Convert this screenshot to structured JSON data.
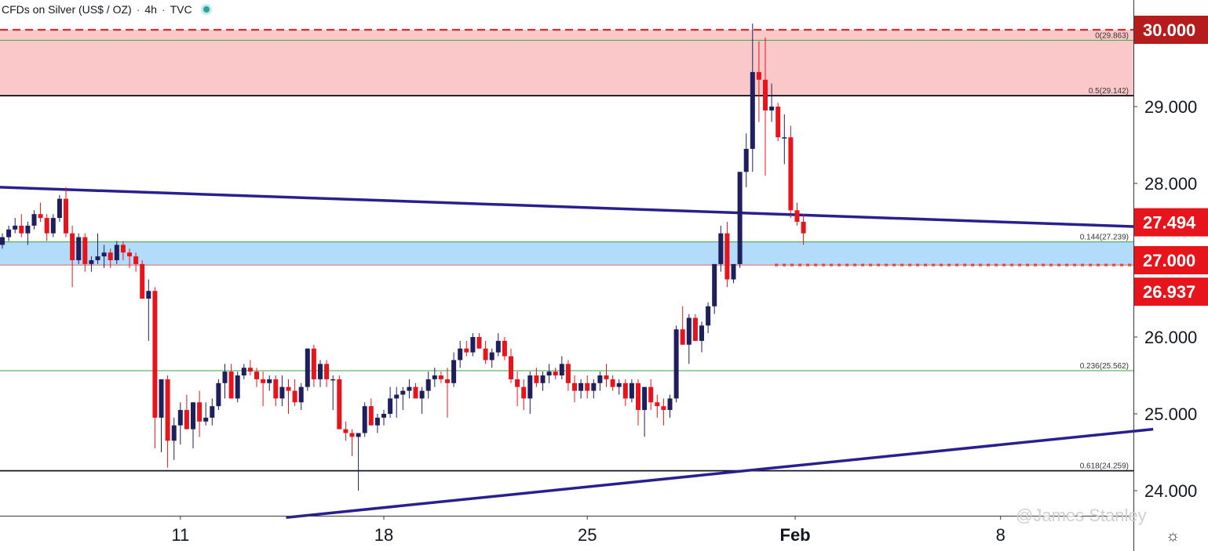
{
  "header": {
    "symbol": "CFDs on Silver (US$ / OZ)",
    "separator": "·",
    "interval": "4h",
    "source": "TVC"
  },
  "watermark": "@James Stanley",
  "colors": {
    "bull": "#1f1f5e",
    "bear": "#e8141c",
    "resistance_zone": "#fac8c8",
    "support_zone": "#b3dcfb",
    "trendline": "#2a1f8f",
    "fib_green": "#4caf50",
    "price_tag_red": "#e8141c",
    "price_tag_dark_red": "#b71c1c"
  },
  "chart_data": {
    "type": "candlestick",
    "title": "CFDs on Silver (US$ / OZ)",
    "interval": "4h",
    "x_ticks": [
      "11",
      "18",
      "25",
      "Feb",
      "8"
    ],
    "y_ticks": [
      "30.000",
      "29.000",
      "28.000",
      "27.000",
      "26.000",
      "25.000",
      "24.000"
    ],
    "y_range": [
      23.7,
      30.3
    ],
    "price_tags": [
      {
        "label": "30.000",
        "value": 30.0,
        "style": "dark"
      },
      {
        "label": "27.494",
        "value": 27.494,
        "style": "red"
      },
      {
        "label": "27.000",
        "value": 27.0,
        "style": "red"
      },
      {
        "label": "26.937",
        "value": 26.937,
        "style": "red"
      }
    ],
    "zones": [
      {
        "name": "resistance",
        "from": 29.142,
        "to": 30.0
      },
      {
        "name": "support",
        "from": 26.937,
        "to": 27.239
      }
    ],
    "fib_levels": [
      {
        "label": "0(29.863)",
        "value": 29.863,
        "color": "green"
      },
      {
        "label": "0.5(29.142)",
        "value": 29.142,
        "color": "black"
      },
      {
        "label": "0.144(27.239)",
        "value": 27.239,
        "color": "green"
      },
      {
        "label": "0.236(25.562)",
        "value": 25.562,
        "color": "green"
      },
      {
        "label": "0.618(24.259)",
        "value": 24.259,
        "color": "black"
      }
    ],
    "hlines": [
      {
        "value": 30.0,
        "style": "dashed-red"
      },
      {
        "value": 26.937,
        "style": "dotted-red"
      }
    ],
    "trendlines": [
      {
        "from": {
          "bar": 0,
          "price": 27.95
        },
        "to": {
          "bar": 181,
          "price": 27.43
        }
      },
      {
        "from": {
          "bar": 45,
          "price": 23.65
        },
        "to": {
          "bar": 181,
          "price": 24.8
        }
      }
    ],
    "candles": [
      [
        27.2,
        27.35,
        27.15,
        27.3
      ],
      [
        27.3,
        27.45,
        27.25,
        27.4
      ],
      [
        27.4,
        27.55,
        27.35,
        27.45
      ],
      [
        27.45,
        27.6,
        27.3,
        27.35
      ],
      [
        27.35,
        27.5,
        27.2,
        27.45
      ],
      [
        27.45,
        27.65,
        27.4,
        27.6
      ],
      [
        27.6,
        27.75,
        27.5,
        27.55
      ],
      [
        27.55,
        27.6,
        27.25,
        27.35
      ],
      [
        27.35,
        27.6,
        27.3,
        27.55
      ],
      [
        27.55,
        27.85,
        27.5,
        27.8
      ],
      [
        27.8,
        27.95,
        27.3,
        27.35
      ],
      [
        27.35,
        27.45,
        26.65,
        27.0
      ],
      [
        27.0,
        27.35,
        26.95,
        27.3
      ],
      [
        27.3,
        27.35,
        26.85,
        26.95
      ],
      [
        26.95,
        27.05,
        26.85,
        27.0
      ],
      [
        27.0,
        27.35,
        26.95,
        27.05
      ],
      [
        27.05,
        27.2,
        26.9,
        27.1
      ],
      [
        27.1,
        27.15,
        26.9,
        27.0
      ],
      [
        27.0,
        27.25,
        26.95,
        27.2
      ],
      [
        27.2,
        27.25,
        27.0,
        27.1
      ],
      [
        27.1,
        27.15,
        26.9,
        27.05
      ],
      [
        27.05,
        27.1,
        26.85,
        26.95
      ],
      [
        26.95,
        27.0,
        26.55,
        26.5
      ],
      [
        26.5,
        26.75,
        25.95,
        26.6
      ],
      [
        26.6,
        26.65,
        24.55,
        24.95
      ],
      [
        24.95,
        25.45,
        24.5,
        25.45
      ],
      [
        25.45,
        25.5,
        24.3,
        24.65
      ],
      [
        24.65,
        24.95,
        24.4,
        24.85
      ],
      [
        24.85,
        25.15,
        24.6,
        25.05
      ],
      [
        25.05,
        25.25,
        24.8,
        24.8
      ],
      [
        24.8,
        25.15,
        24.55,
        25.15
      ],
      [
        25.15,
        25.3,
        24.7,
        24.9
      ],
      [
        24.9,
        25.15,
        24.85,
        24.95
      ],
      [
        24.95,
        25.2,
        24.85,
        25.1
      ],
      [
        25.1,
        25.45,
        25.05,
        25.4
      ],
      [
        25.4,
        25.65,
        25.2,
        25.55
      ],
      [
        25.55,
        25.65,
        25.25,
        25.2
      ],
      [
        25.2,
        25.55,
        25.15,
        25.5
      ],
      [
        25.5,
        25.65,
        25.45,
        25.6
      ],
      [
        25.6,
        25.7,
        25.5,
        25.55
      ],
      [
        25.55,
        25.6,
        25.35,
        25.45
      ],
      [
        25.45,
        25.55,
        25.1,
        25.4
      ],
      [
        25.4,
        25.5,
        25.3,
        25.45
      ],
      [
        25.45,
        25.5,
        25.1,
        25.2
      ],
      [
        25.2,
        25.5,
        25.1,
        25.35
      ],
      [
        25.35,
        25.45,
        25.0,
        25.3
      ],
      [
        25.3,
        25.45,
        25.1,
        25.15
      ],
      [
        25.15,
        25.4,
        25.05,
        25.35
      ],
      [
        25.35,
        25.85,
        25.3,
        25.85
      ],
      [
        25.85,
        25.9,
        25.35,
        25.45
      ],
      [
        25.45,
        25.7,
        25.35,
        25.65
      ],
      [
        25.65,
        25.7,
        25.35,
        25.45
      ],
      [
        25.45,
        25.5,
        25.05,
        25.45
      ],
      [
        25.45,
        25.5,
        24.8,
        24.8
      ],
      [
        24.8,
        24.9,
        24.65,
        24.75
      ],
      [
        24.75,
        24.8,
        24.45,
        24.7
      ],
      [
        24.7,
        24.75,
        24.0,
        24.75
      ],
      [
        24.75,
        25.15,
        24.7,
        25.1
      ],
      [
        25.1,
        25.2,
        24.85,
        24.85
      ],
      [
        24.85,
        25.0,
        24.75,
        24.95
      ],
      [
        24.95,
        25.05,
        24.85,
        25.0
      ],
      [
        25.0,
        25.35,
        24.95,
        25.2
      ],
      [
        25.2,
        25.35,
        24.95,
        25.25
      ],
      [
        25.25,
        25.35,
        25.05,
        25.3
      ],
      [
        25.3,
        25.45,
        25.2,
        25.35
      ],
      [
        25.35,
        25.4,
        25.2,
        25.2
      ],
      [
        25.2,
        25.35,
        25.0,
        25.3
      ],
      [
        25.3,
        25.55,
        25.2,
        25.45
      ],
      [
        25.45,
        25.6,
        25.35,
        25.5
      ],
      [
        25.5,
        25.55,
        25.4,
        25.45
      ],
      [
        25.45,
        25.6,
        24.95,
        25.4
      ],
      [
        25.4,
        25.8,
        25.35,
        25.7
      ],
      [
        25.7,
        25.95,
        25.6,
        25.85
      ],
      [
        25.85,
        25.95,
        25.75,
        25.8
      ],
      [
        25.8,
        26.05,
        25.75,
        26.0
      ],
      [
        26.0,
        26.05,
        25.85,
        25.85
      ],
      [
        25.85,
        25.95,
        25.65,
        25.7
      ],
      [
        25.7,
        25.85,
        25.6,
        25.8
      ],
      [
        25.8,
        26.05,
        25.75,
        25.95
      ],
      [
        25.95,
        26.0,
        25.7,
        25.75
      ],
      [
        25.75,
        25.85,
        25.4,
        25.45
      ],
      [
        25.45,
        25.55,
        25.1,
        25.35
      ],
      [
        25.35,
        25.45,
        25.05,
        25.2
      ],
      [
        25.2,
        25.55,
        25.0,
        25.5
      ],
      [
        25.5,
        25.6,
        25.35,
        25.4
      ],
      [
        25.4,
        25.55,
        25.3,
        25.5
      ],
      [
        25.5,
        25.65,
        25.4,
        25.55
      ],
      [
        25.55,
        25.6,
        25.45,
        25.5
      ],
      [
        25.5,
        25.75,
        25.45,
        25.65
      ],
      [
        25.65,
        25.7,
        25.3,
        25.4
      ],
      [
        25.4,
        25.5,
        25.15,
        25.3
      ],
      [
        25.3,
        25.45,
        25.2,
        25.4
      ],
      [
        25.4,
        25.5,
        25.2,
        25.3
      ],
      [
        25.3,
        25.45,
        25.2,
        25.4
      ],
      [
        25.4,
        25.55,
        25.3,
        25.5
      ],
      [
        25.5,
        25.65,
        25.35,
        25.45
      ],
      [
        25.45,
        25.5,
        25.3,
        25.35
      ],
      [
        25.35,
        25.45,
        25.25,
        25.4
      ],
      [
        25.4,
        25.45,
        25.1,
        25.2
      ],
      [
        25.2,
        25.45,
        25.15,
        25.4
      ],
      [
        25.4,
        25.45,
        24.85,
        25.05
      ],
      [
        25.05,
        25.35,
        24.7,
        25.35
      ],
      [
        25.35,
        25.45,
        25.05,
        25.15
      ],
      [
        25.15,
        25.25,
        24.95,
        25.1
      ],
      [
        25.1,
        25.2,
        24.85,
        25.05
      ],
      [
        25.05,
        25.25,
        24.95,
        25.2
      ],
      [
        25.2,
        26.15,
        25.15,
        26.1
      ],
      [
        26.1,
        26.4,
        25.9,
        25.9
      ],
      [
        25.9,
        26.3,
        25.65,
        26.25
      ],
      [
        26.25,
        26.3,
        25.95,
        25.95
      ],
      [
        25.95,
        26.2,
        25.8,
        26.15
      ],
      [
        26.15,
        26.45,
        26.05,
        26.4
      ],
      [
        26.4,
        26.95,
        26.3,
        26.95
      ],
      [
        26.95,
        27.45,
        26.85,
        27.35
      ],
      [
        27.35,
        27.5,
        26.65,
        26.75
      ],
      [
        26.75,
        26.95,
        26.7,
        26.95
      ],
      [
        26.95,
        28.15,
        26.9,
        28.15
      ],
      [
        28.15,
        28.65,
        27.95,
        28.45
      ],
      [
        28.45,
        30.08,
        28.15,
        29.45
      ],
      [
        29.45,
        29.85,
        28.8,
        29.35
      ],
      [
        29.35,
        29.9,
        28.1,
        28.95
      ],
      [
        28.95,
        29.3,
        28.8,
        29.0
      ],
      [
        29.0,
        29.05,
        28.55,
        28.6
      ],
      [
        28.6,
        28.9,
        28.25,
        28.6
      ],
      [
        28.6,
        28.75,
        27.55,
        27.65
      ],
      [
        27.65,
        27.75,
        27.45,
        27.5
      ],
      [
        27.5,
        27.6,
        27.2,
        27.35
      ]
    ]
  }
}
